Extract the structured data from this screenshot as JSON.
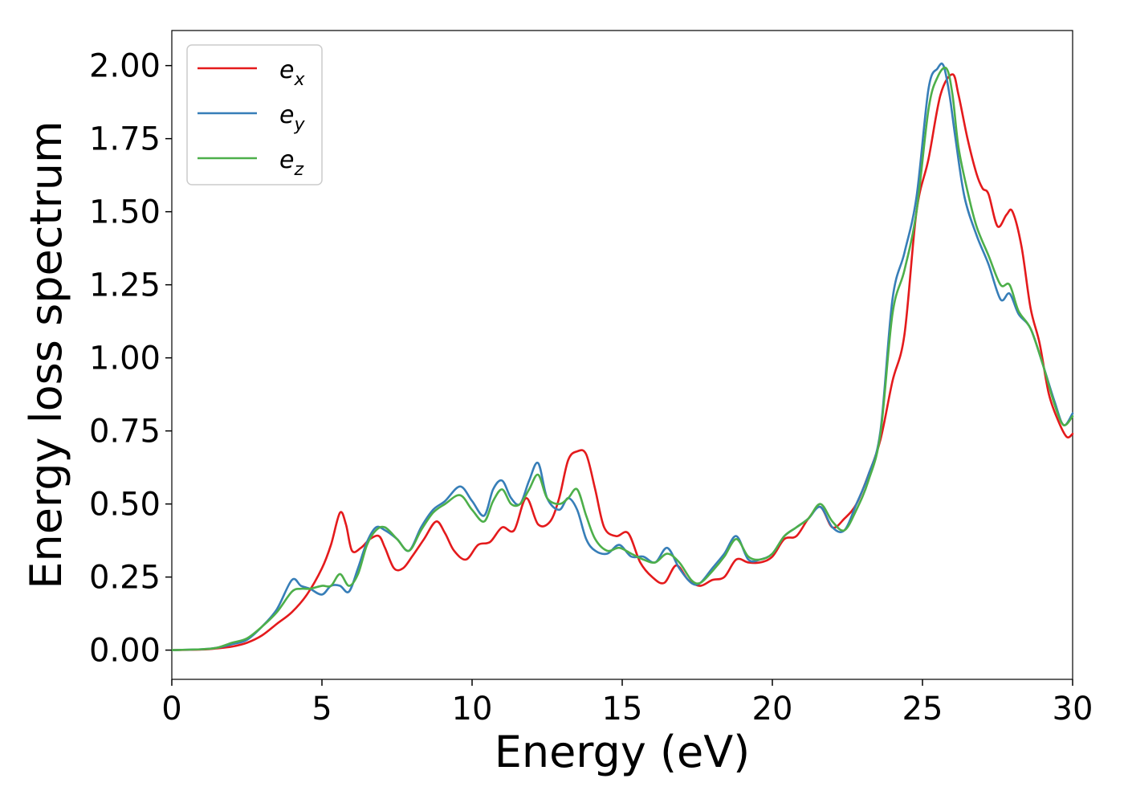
{
  "chart_data": {
    "type": "line",
    "title": "",
    "xlabel": "Energy (eV)",
    "ylabel": "Energy loss spectrum",
    "xlim": [
      0,
      30
    ],
    "ylim": [
      -0.1,
      2.12
    ],
    "xticks": [
      0,
      5,
      10,
      15,
      20,
      25,
      30
    ],
    "xtick_labels": [
      "0",
      "5",
      "10",
      "15",
      "20",
      "25",
      "30"
    ],
    "yticks": [
      0,
      0.25,
      0.5,
      0.75,
      1.0,
      1.25,
      1.5,
      1.75,
      2.0
    ],
    "ytick_labels": [
      "0.00",
      "0.25",
      "0.50",
      "0.75",
      "1.00",
      "1.25",
      "1.50",
      "1.75",
      "2.00"
    ],
    "grid": false,
    "legend_position": "top-left",
    "series": [
      {
        "name": "e",
        "subscript": "x",
        "color": "#e41a1c",
        "x": [
          0,
          1,
          1.5,
          2,
          2.5,
          3,
          3.5,
          4,
          4.5,
          5,
          5.3,
          5.6,
          5.8,
          6.0,
          6.3,
          6.6,
          6.9,
          7.1,
          7.4,
          7.7,
          8.0,
          8.4,
          8.8,
          9.1,
          9.4,
          9.8,
          10.2,
          10.6,
          11.0,
          11.4,
          11.8,
          12.2,
          12.6,
          12.9,
          13.2,
          13.5,
          13.8,
          14.1,
          14.4,
          14.8,
          15.2,
          15.6,
          16.0,
          16.4,
          16.8,
          17.2,
          17.6,
          18.0,
          18.4,
          18.8,
          19.2,
          19.6,
          20.0,
          20.4,
          20.8,
          21.2,
          21.6,
          22.0,
          22.4,
          22.8,
          23.2,
          23.6,
          24.0,
          24.4,
          24.8,
          25.2,
          25.6,
          26.0,
          26.2,
          26.5,
          26.8,
          27.0,
          27.2,
          27.5,
          27.8,
          28.0,
          28.3,
          28.6,
          28.9,
          29.2,
          29.5,
          29.8,
          30
        ],
        "values": [
          0,
          0.002,
          0.006,
          0.012,
          0.025,
          0.05,
          0.09,
          0.13,
          0.19,
          0.28,
          0.36,
          0.47,
          0.43,
          0.34,
          0.35,
          0.38,
          0.39,
          0.35,
          0.28,
          0.28,
          0.32,
          0.38,
          0.44,
          0.4,
          0.34,
          0.31,
          0.36,
          0.37,
          0.42,
          0.41,
          0.52,
          0.43,
          0.44,
          0.52,
          0.65,
          0.68,
          0.67,
          0.55,
          0.42,
          0.39,
          0.4,
          0.3,
          0.25,
          0.23,
          0.29,
          0.24,
          0.22,
          0.24,
          0.25,
          0.31,
          0.3,
          0.3,
          0.32,
          0.38,
          0.39,
          0.45,
          0.49,
          0.42,
          0.45,
          0.5,
          0.6,
          0.72,
          0.92,
          1.08,
          1.5,
          1.68,
          1.9,
          1.97,
          1.9,
          1.75,
          1.63,
          1.58,
          1.56,
          1.45,
          1.49,
          1.5,
          1.38,
          1.17,
          1.05,
          0.88,
          0.79,
          0.73,
          0.74
        ]
      },
      {
        "name": "e",
        "subscript": "y",
        "color": "#377eb8",
        "x": [
          0,
          1,
          1.5,
          2,
          2.5,
          3,
          3.5,
          4,
          4.3,
          4.6,
          5.0,
          5.3,
          5.6,
          5.9,
          6.2,
          6.5,
          6.8,
          7.1,
          7.5,
          7.9,
          8.3,
          8.7,
          9.1,
          9.6,
          10.0,
          10.4,
          10.7,
          11.0,
          11.3,
          11.6,
          11.9,
          12.2,
          12.5,
          12.9,
          13.2,
          13.5,
          13.8,
          14.1,
          14.5,
          14.9,
          15.3,
          15.7,
          16.1,
          16.5,
          16.9,
          17.3,
          17.6,
          18.0,
          18.4,
          18.8,
          19.2,
          19.6,
          20.0,
          20.4,
          20.8,
          21.2,
          21.6,
          22.0,
          22.4,
          22.8,
          23.2,
          23.6,
          24.0,
          24.4,
          24.8,
          25.2,
          25.5,
          25.7,
          25.9,
          26.1,
          26.4,
          26.8,
          27.2,
          27.6,
          27.9,
          28.2,
          28.6,
          29.0,
          29.4,
          29.7,
          30
        ],
        "values": [
          0,
          0.003,
          0.008,
          0.02,
          0.035,
          0.08,
          0.14,
          0.24,
          0.22,
          0.21,
          0.19,
          0.22,
          0.22,
          0.2,
          0.28,
          0.37,
          0.42,
          0.41,
          0.38,
          0.34,
          0.42,
          0.48,
          0.51,
          0.56,
          0.51,
          0.46,
          0.55,
          0.58,
          0.52,
          0.5,
          0.58,
          0.64,
          0.52,
          0.48,
          0.52,
          0.48,
          0.38,
          0.34,
          0.33,
          0.36,
          0.32,
          0.32,
          0.3,
          0.35,
          0.28,
          0.23,
          0.23,
          0.28,
          0.33,
          0.39,
          0.31,
          0.31,
          0.33,
          0.39,
          0.42,
          0.45,
          0.49,
          0.42,
          0.41,
          0.5,
          0.6,
          0.75,
          1.2,
          1.36,
          1.55,
          1.92,
          1.99,
          2.0,
          1.9,
          1.75,
          1.55,
          1.42,
          1.32,
          1.2,
          1.22,
          1.15,
          1.1,
          0.98,
          0.85,
          0.77,
          0.81
        ]
      },
      {
        "name": "e",
        "subscript": "z",
        "color": "#4daf4a",
        "x": [
          0,
          1,
          1.5,
          2,
          2.5,
          3,
          3.5,
          4,
          4.3,
          4.6,
          5.0,
          5.3,
          5.6,
          5.9,
          6.2,
          6.5,
          6.8,
          7.1,
          7.5,
          7.9,
          8.3,
          8.7,
          9.1,
          9.6,
          10.0,
          10.4,
          10.7,
          11.0,
          11.3,
          11.6,
          11.9,
          12.2,
          12.5,
          12.9,
          13.2,
          13.5,
          13.8,
          14.1,
          14.5,
          14.9,
          15.3,
          15.7,
          16.1,
          16.5,
          16.9,
          17.3,
          17.6,
          18.0,
          18.4,
          18.8,
          19.2,
          19.6,
          20.0,
          20.4,
          20.8,
          21.2,
          21.6,
          22.0,
          22.4,
          22.8,
          23.2,
          23.6,
          24.0,
          24.4,
          24.8,
          25.2,
          25.5,
          25.8,
          26.0,
          26.2,
          26.5,
          26.8,
          27.2,
          27.6,
          27.9,
          28.2,
          28.6,
          29.0,
          29.4,
          29.7,
          30
        ],
        "values": [
          0,
          0.003,
          0.008,
          0.025,
          0.04,
          0.08,
          0.13,
          0.2,
          0.21,
          0.21,
          0.22,
          0.22,
          0.26,
          0.22,
          0.26,
          0.36,
          0.41,
          0.42,
          0.38,
          0.34,
          0.41,
          0.47,
          0.5,
          0.53,
          0.48,
          0.44,
          0.51,
          0.55,
          0.5,
          0.5,
          0.55,
          0.6,
          0.52,
          0.5,
          0.52,
          0.55,
          0.46,
          0.38,
          0.34,
          0.35,
          0.33,
          0.31,
          0.3,
          0.33,
          0.3,
          0.24,
          0.23,
          0.27,
          0.32,
          0.38,
          0.32,
          0.31,
          0.33,
          0.39,
          0.42,
          0.45,
          0.5,
          0.44,
          0.41,
          0.48,
          0.58,
          0.74,
          1.15,
          1.3,
          1.5,
          1.85,
          1.96,
          1.99,
          1.9,
          1.72,
          1.57,
          1.45,
          1.35,
          1.25,
          1.25,
          1.16,
          1.1,
          0.98,
          0.84,
          0.77,
          0.8
        ]
      }
    ]
  }
}
